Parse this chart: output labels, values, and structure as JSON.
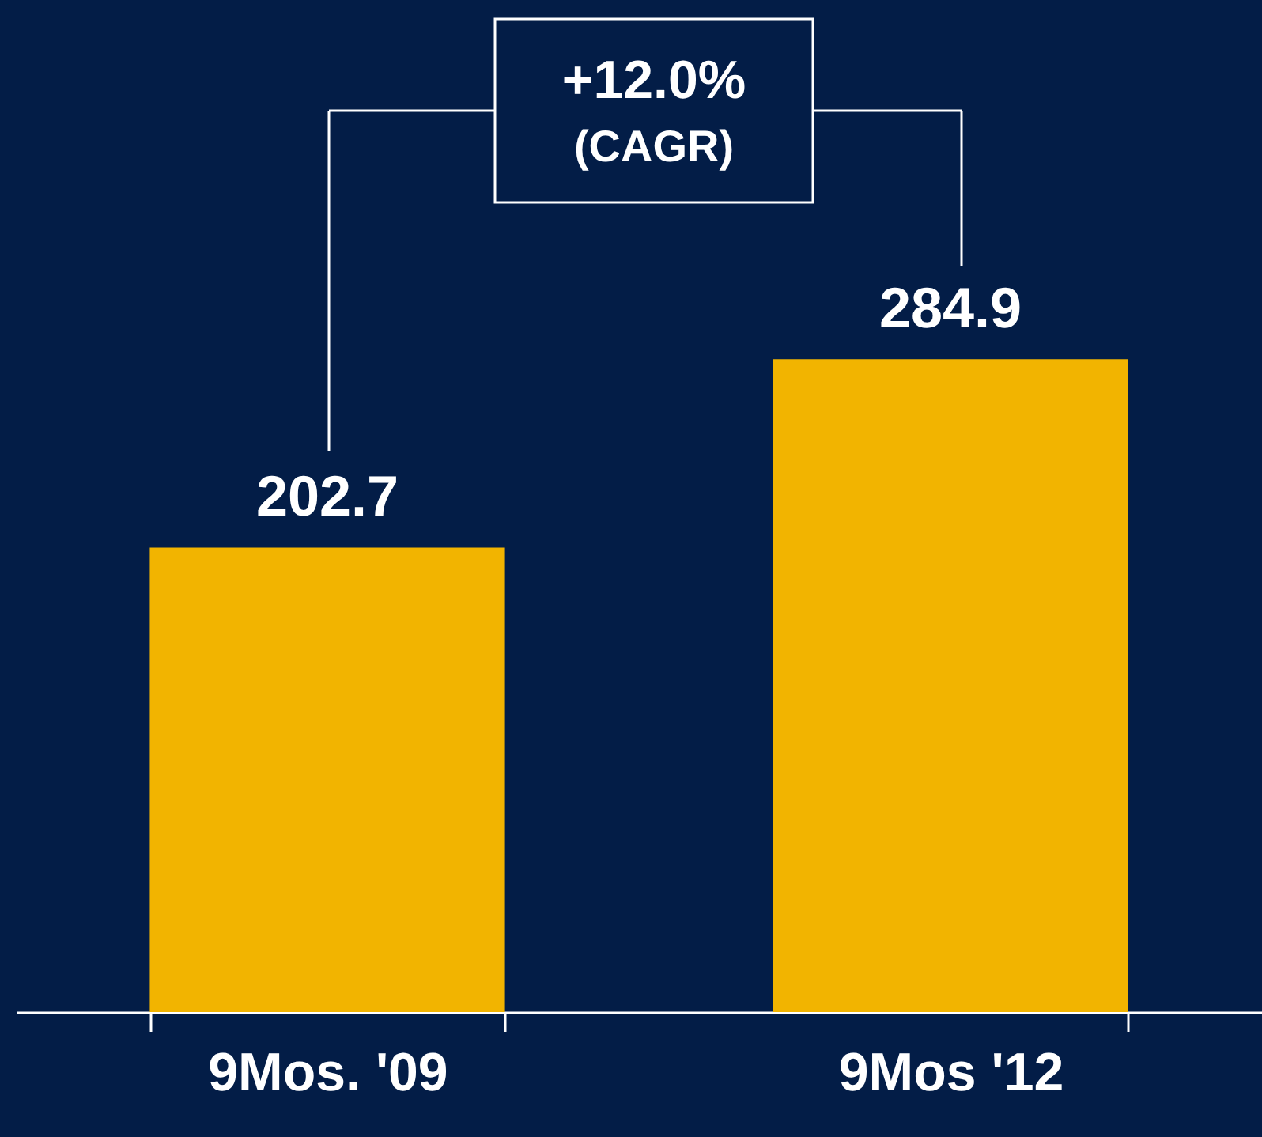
{
  "chart_data": {
    "type": "bar",
    "categories": [
      "9Mos. '09",
      "9Mos '12"
    ],
    "values": [
      202.7,
      284.9
    ],
    "color": "#f2b400",
    "data_labels": true,
    "annotations": [
      "+12.0%",
      "(CAGR)"
    ]
  }
}
